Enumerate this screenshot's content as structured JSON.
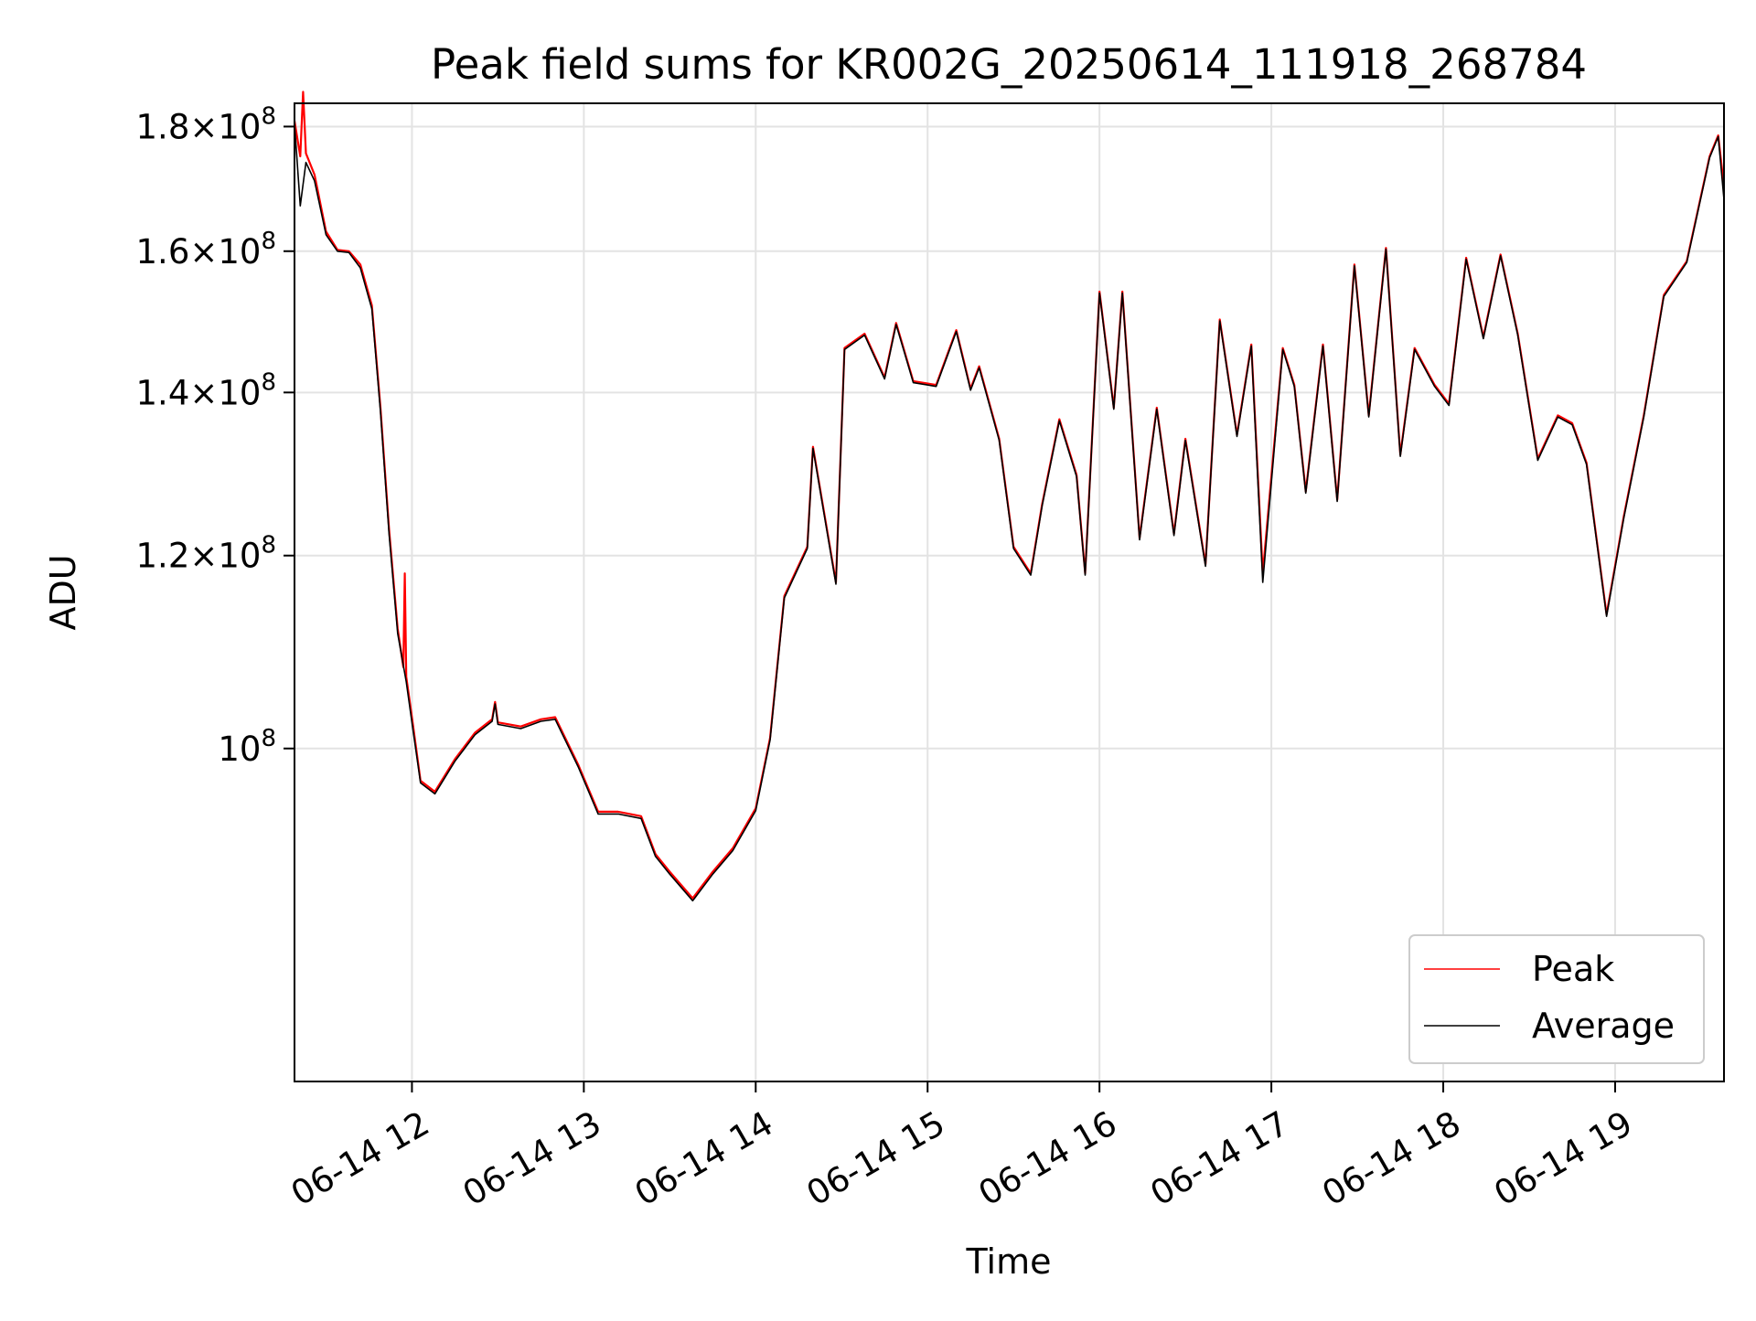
{
  "chart_data": {
    "type": "line",
    "title": "Peak field sums for KR002G_20250614_111918_268784",
    "xlabel": "Time",
    "ylabel": "ADU",
    "yscale": "log",
    "grid": true,
    "legend_position": "lower right",
    "xlim": [
      "2025-06-14 11:19",
      "2025-06-14 19:38"
    ],
    "ylim": [
      73000000,
      184000000
    ],
    "x_ticks": [
      {
        "value": "2025-06-14 12:00",
        "label": "06-14 12"
      },
      {
        "value": "2025-06-14 13:00",
        "label": "06-14 13"
      },
      {
        "value": "2025-06-14 14:00",
        "label": "06-14 14"
      },
      {
        "value": "2025-06-14 15:00",
        "label": "06-14 15"
      },
      {
        "value": "2025-06-14 16:00",
        "label": "06-14 16"
      },
      {
        "value": "2025-06-14 17:00",
        "label": "06-14 17"
      },
      {
        "value": "2025-06-14 18:00",
        "label": "06-14 18"
      },
      {
        "value": "2025-06-14 19:00",
        "label": "06-14 19"
      }
    ],
    "y_ticks": [
      {
        "value": 100000000,
        "mantissa": "",
        "exponent": "8",
        "label": "10^8"
      },
      {
        "value": 120000000,
        "mantissa": "1.2",
        "exponent": "8",
        "label": "1.2×10^8"
      },
      {
        "value": 140000000,
        "mantissa": "1.4",
        "exponent": "8",
        "label": "1.4×10^8"
      },
      {
        "value": 160000000,
        "mantissa": "1.6",
        "exponent": "8",
        "label": "1.6×10^8"
      },
      {
        "value": 180000000,
        "mantissa": "1.8",
        "exponent": "8",
        "label": "1.8×10^8"
      }
    ],
    "series": [
      {
        "name": "Peak",
        "color": "#ff0000",
        "points": [
          [
            "2025-06-14 11:19",
            181000000
          ],
          [
            "2025-06-14 11:21",
            175000000
          ],
          [
            "2025-06-14 11:22",
            186000000
          ],
          [
            "2025-06-14 11:23",
            175500000
          ],
          [
            "2025-06-14 11:26",
            172000000
          ],
          [
            "2025-06-14 11:30",
            163000000
          ],
          [
            "2025-06-14 11:34",
            160200000
          ],
          [
            "2025-06-14 11:38",
            160000000
          ],
          [
            "2025-06-14 11:42",
            158000000
          ],
          [
            "2025-06-14 11:46",
            152000000
          ],
          [
            "2025-06-14 11:49",
            138000000
          ],
          [
            "2025-06-14 11:52",
            123000000
          ],
          [
            "2025-06-14 11:55",
            112000000
          ],
          [
            "2025-06-14 11:57",
            108000000
          ],
          [
            "2025-06-14 11:57.5",
            118000000
          ],
          [
            "2025-06-14 11:58",
            107000000
          ],
          [
            "2025-06-14 12:00",
            103000000
          ],
          [
            "2025-06-14 12:03",
            97000000
          ],
          [
            "2025-06-14 12:08",
            96000000
          ],
          [
            "2025-06-14 12:15",
            99000000
          ],
          [
            "2025-06-14 12:22",
            101500000
          ],
          [
            "2025-06-14 12:28",
            102800000
          ],
          [
            "2025-06-14 12:29",
            104500000
          ],
          [
            "2025-06-14 12:30",
            102500000
          ],
          [
            "2025-06-14 12:38",
            102100000
          ],
          [
            "2025-06-14 12:45",
            102800000
          ],
          [
            "2025-06-14 12:50",
            103000000
          ],
          [
            "2025-06-14 12:58",
            98500000
          ],
          [
            "2025-06-14 13:05",
            94200000
          ],
          [
            "2025-06-14 13:12",
            94200000
          ],
          [
            "2025-06-14 13:20",
            93800000
          ],
          [
            "2025-06-14 13:25",
            90500000
          ],
          [
            "2025-06-14 13:30",
            89000000
          ],
          [
            "2025-06-14 13:38",
            86800000
          ],
          [
            "2025-06-14 13:45",
            89000000
          ],
          [
            "2025-06-14 13:52",
            91000000
          ],
          [
            "2025-06-14 14:00",
            94500000
          ],
          [
            "2025-06-14 14:05",
            101000000
          ],
          [
            "2025-06-14 14:10",
            115500000
          ],
          [
            "2025-06-14 14:18",
            121000000
          ],
          [
            "2025-06-14 14:20",
            133000000
          ],
          [
            "2025-06-14 14:28",
            117000000
          ],
          [
            "2025-06-14 14:31",
            146000000
          ],
          [
            "2025-06-14 14:38",
            148000000
          ],
          [
            "2025-06-14 14:45",
            142000000
          ],
          [
            "2025-06-14 14:49",
            149500000
          ],
          [
            "2025-06-14 14:55",
            141500000
          ],
          [
            "2025-06-14 15:03",
            141000000
          ],
          [
            "2025-06-14 15:10",
            148500000
          ],
          [
            "2025-06-14 15:15",
            140500000
          ],
          [
            "2025-06-14 15:18",
            143500000
          ],
          [
            "2025-06-14 15:25",
            134000000
          ],
          [
            "2025-06-14 15:30",
            121000000
          ],
          [
            "2025-06-14 15:36",
            118000000
          ],
          [
            "2025-06-14 15:40",
            126000000
          ],
          [
            "2025-06-14 15:46",
            136500000
          ],
          [
            "2025-06-14 15:52",
            129500000
          ],
          [
            "2025-06-14 15:55",
            118000000
          ],
          [
            "2025-06-14 16:00",
            154000000
          ],
          [
            "2025-06-14 16:05",
            138000000
          ],
          [
            "2025-06-14 16:08",
            154000000
          ],
          [
            "2025-06-14 16:14",
            122000000
          ],
          [
            "2025-06-14 16:20",
            138000000
          ],
          [
            "2025-06-14 16:26",
            122500000
          ],
          [
            "2025-06-14 16:30",
            134000000
          ],
          [
            "2025-06-14 16:37",
            119000000
          ],
          [
            "2025-06-14 16:42",
            150000000
          ],
          [
            "2025-06-14 16:48",
            134500000
          ],
          [
            "2025-06-14 16:53",
            146500000
          ],
          [
            "2025-06-14 16:57",
            118000000
          ],
          [
            "2025-06-14 17:04",
            146000000
          ],
          [
            "2025-06-14 17:08",
            141000000
          ],
          [
            "2025-06-14 17:12",
            127500000
          ],
          [
            "2025-06-14 17:18",
            146500000
          ],
          [
            "2025-06-14 17:23",
            126500000
          ],
          [
            "2025-06-14 17:29",
            158000000
          ],
          [
            "2025-06-14 17:34",
            137000000
          ],
          [
            "2025-06-14 17:40",
            160500000
          ],
          [
            "2025-06-14 17:45",
            132000000
          ],
          [
            "2025-06-14 17:50",
            146000000
          ],
          [
            "2025-06-14 17:57",
            141000000
          ],
          [
            "2025-06-14 18:02",
            138500000
          ],
          [
            "2025-06-14 18:08",
            159000000
          ],
          [
            "2025-06-14 18:14",
            147500000
          ],
          [
            "2025-06-14 18:20",
            159500000
          ],
          [
            "2025-06-14 18:26",
            148000000
          ],
          [
            "2025-06-14 18:33",
            131500000
          ],
          [
            "2025-06-14 18:40",
            137000000
          ],
          [
            "2025-06-14 18:45",
            136000000
          ],
          [
            "2025-06-14 18:50",
            131000000
          ],
          [
            "2025-06-14 18:57",
            113500000
          ],
          [
            "2025-06-14 19:03",
            124500000
          ],
          [
            "2025-06-14 19:10",
            137000000
          ],
          [
            "2025-06-14 19:17",
            153500000
          ],
          [
            "2025-06-14 19:25",
            158500000
          ],
          [
            "2025-06-14 19:33",
            175000000
          ],
          [
            "2025-06-14 19:36",
            178500000
          ],
          [
            "2025-06-14 19:38",
            170000000
          ]
        ]
      },
      {
        "name": "Average",
        "color": "#000000",
        "points": [
          [
            "2025-06-14 11:19",
            180500000
          ],
          [
            "2025-06-14 11:21",
            167000000
          ],
          [
            "2025-06-14 11:23",
            174000000
          ],
          [
            "2025-06-14 11:26",
            171000000
          ],
          [
            "2025-06-14 11:30",
            162500000
          ],
          [
            "2025-06-14 11:34",
            160000000
          ],
          [
            "2025-06-14 11:38",
            159800000
          ],
          [
            "2025-06-14 11:42",
            157500000
          ],
          [
            "2025-06-14 11:46",
            151500000
          ],
          [
            "2025-06-14 11:49",
            137500000
          ],
          [
            "2025-06-14 11:52",
            122500000
          ],
          [
            "2025-06-14 11:55",
            111500000
          ],
          [
            "2025-06-14 11:58",
            106500000
          ],
          [
            "2025-06-14 12:00",
            102500000
          ],
          [
            "2025-06-14 12:03",
            96800000
          ],
          [
            "2025-06-14 12:08",
            95800000
          ],
          [
            "2025-06-14 12:15",
            98800000
          ],
          [
            "2025-06-14 12:22",
            101300000
          ],
          [
            "2025-06-14 12:28",
            102600000
          ],
          [
            "2025-06-14 12:29",
            104300000
          ],
          [
            "2025-06-14 12:30",
            102300000
          ],
          [
            "2025-06-14 12:38",
            101900000
          ],
          [
            "2025-06-14 12:45",
            102600000
          ],
          [
            "2025-06-14 12:50",
            102800000
          ],
          [
            "2025-06-14 12:58",
            98300000
          ],
          [
            "2025-06-14 13:05",
            94000000
          ],
          [
            "2025-06-14 13:12",
            94000000
          ],
          [
            "2025-06-14 13:20",
            93600000
          ],
          [
            "2025-06-14 13:25",
            90300000
          ],
          [
            "2025-06-14 13:30",
            88800000
          ],
          [
            "2025-06-14 13:38",
            86600000
          ],
          [
            "2025-06-14 13:45",
            88800000
          ],
          [
            "2025-06-14 13:52",
            90800000
          ],
          [
            "2025-06-14 14:00",
            94300000
          ],
          [
            "2025-06-14 14:05",
            100800000
          ],
          [
            "2025-06-14 14:10",
            115300000
          ],
          [
            "2025-06-14 14:18",
            120800000
          ],
          [
            "2025-06-14 14:20",
            132800000
          ],
          [
            "2025-06-14 14:28",
            116800000
          ],
          [
            "2025-06-14 14:31",
            145800000
          ],
          [
            "2025-06-14 14:38",
            147800000
          ],
          [
            "2025-06-14 14:45",
            141800000
          ],
          [
            "2025-06-14 14:49",
            149300000
          ],
          [
            "2025-06-14 14:55",
            141300000
          ],
          [
            "2025-06-14 15:03",
            140800000
          ],
          [
            "2025-06-14 15:10",
            148300000
          ],
          [
            "2025-06-14 15:15",
            140300000
          ],
          [
            "2025-06-14 15:18",
            143300000
          ],
          [
            "2025-06-14 15:25",
            133800000
          ],
          [
            "2025-06-14 15:30",
            120800000
          ],
          [
            "2025-06-14 15:36",
            117800000
          ],
          [
            "2025-06-14 15:40",
            125800000
          ],
          [
            "2025-06-14 15:46",
            136300000
          ],
          [
            "2025-06-14 15:52",
            129300000
          ],
          [
            "2025-06-14 15:55",
            117800000
          ],
          [
            "2025-06-14 16:00",
            153800000
          ],
          [
            "2025-06-14 16:05",
            137800000
          ],
          [
            "2025-06-14 16:08",
            153800000
          ],
          [
            "2025-06-14 16:14",
            121800000
          ],
          [
            "2025-06-14 16:20",
            137800000
          ],
          [
            "2025-06-14 16:26",
            122300000
          ],
          [
            "2025-06-14 16:30",
            133800000
          ],
          [
            "2025-06-14 16:37",
            118800000
          ],
          [
            "2025-06-14 16:42",
            149800000
          ],
          [
            "2025-06-14 16:48",
            134300000
          ],
          [
            "2025-06-14 16:53",
            146300000
          ],
          [
            "2025-06-14 16:57",
            117000000
          ],
          [
            "2025-06-14 17:04",
            145800000
          ],
          [
            "2025-06-14 17:08",
            140800000
          ],
          [
            "2025-06-14 17:12",
            127300000
          ],
          [
            "2025-06-14 17:18",
            146300000
          ],
          [
            "2025-06-14 17:23",
            126300000
          ],
          [
            "2025-06-14 17:29",
            157800000
          ],
          [
            "2025-06-14 17:34",
            136800000
          ],
          [
            "2025-06-14 17:40",
            160300000
          ],
          [
            "2025-06-14 17:45",
            131800000
          ],
          [
            "2025-06-14 17:50",
            145800000
          ],
          [
            "2025-06-14 17:57",
            140800000
          ],
          [
            "2025-06-14 18:02",
            138300000
          ],
          [
            "2025-06-14 18:08",
            158800000
          ],
          [
            "2025-06-14 18:14",
            147300000
          ],
          [
            "2025-06-14 18:20",
            159300000
          ],
          [
            "2025-06-14 18:26",
            147800000
          ],
          [
            "2025-06-14 18:33",
            131300000
          ],
          [
            "2025-06-14 18:40",
            136800000
          ],
          [
            "2025-06-14 18:45",
            135800000
          ],
          [
            "2025-06-14 18:50",
            130800000
          ],
          [
            "2025-06-14 18:57",
            113300000
          ],
          [
            "2025-06-14 19:03",
            124300000
          ],
          [
            "2025-06-14 19:10",
            136800000
          ],
          [
            "2025-06-14 19:17",
            153300000
          ],
          [
            "2025-06-14 19:25",
            158300000
          ],
          [
            "2025-06-14 19:33",
            174800000
          ],
          [
            "2025-06-14 19:36",
            178300000
          ],
          [
            "2025-06-14 19:38",
            168000000
          ]
        ]
      }
    ]
  }
}
